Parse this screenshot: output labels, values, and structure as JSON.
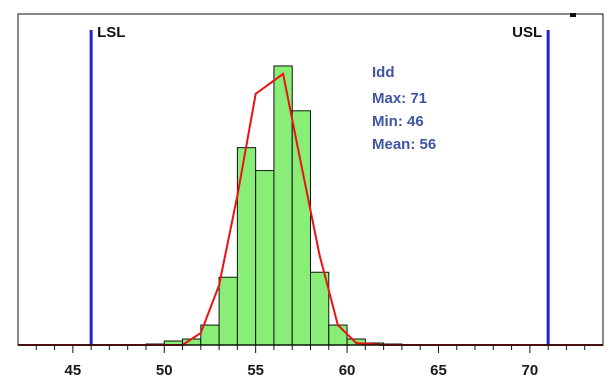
{
  "chart_data": {
    "type": "bar",
    "subtype": "histogram",
    "xlim": [
      42,
      74
    ],
    "ylim": [
      0,
      300
    ],
    "x_ticks": [
      45,
      50,
      55,
      60,
      65,
      70
    ],
    "bin_width": 1,
    "bins": [
      {
        "x0": 49,
        "count": 1
      },
      {
        "x0": 50,
        "count": 4
      },
      {
        "x0": 51,
        "count": 6
      },
      {
        "x0": 52,
        "count": 20
      },
      {
        "x0": 53,
        "count": 68
      },
      {
        "x0": 54,
        "count": 198
      },
      {
        "x0": 55,
        "count": 175
      },
      {
        "x0": 56,
        "count": 280
      },
      {
        "x0": 57,
        "count": 235
      },
      {
        "x0": 58,
        "count": 73
      },
      {
        "x0": 59,
        "count": 20
      },
      {
        "x0": 60,
        "count": 6
      },
      {
        "x0": 61,
        "count": 2
      },
      {
        "x0": 62,
        "count": 1
      }
    ],
    "fit_curve": [
      [
        42,
        0
      ],
      [
        51,
        0
      ],
      [
        52,
        12
      ],
      [
        53,
        60
      ],
      [
        54,
        150
      ],
      [
        55,
        252
      ],
      [
        56.5,
        272
      ],
      [
        57.5,
        180
      ],
      [
        58.5,
        90
      ],
      [
        59.5,
        20
      ],
      [
        60.5,
        2
      ],
      [
        62,
        0
      ],
      [
        74,
        0
      ]
    ],
    "spec_limits": {
      "lsl": 46,
      "usl": 71
    },
    "labels": {
      "lsl": "LSL",
      "usl": "USL"
    },
    "stats": {
      "title": "Idd",
      "max": "Max: 71",
      "min": "Min: 46",
      "mean": "Mean: 56"
    },
    "colors": {
      "bar_fill": "#88ee77",
      "bar_stroke": "#111111",
      "fit_line": "#ee1111",
      "spec_line": "#2222dd",
      "stats_text": "#3f56a6",
      "axis": "#111111"
    }
  }
}
